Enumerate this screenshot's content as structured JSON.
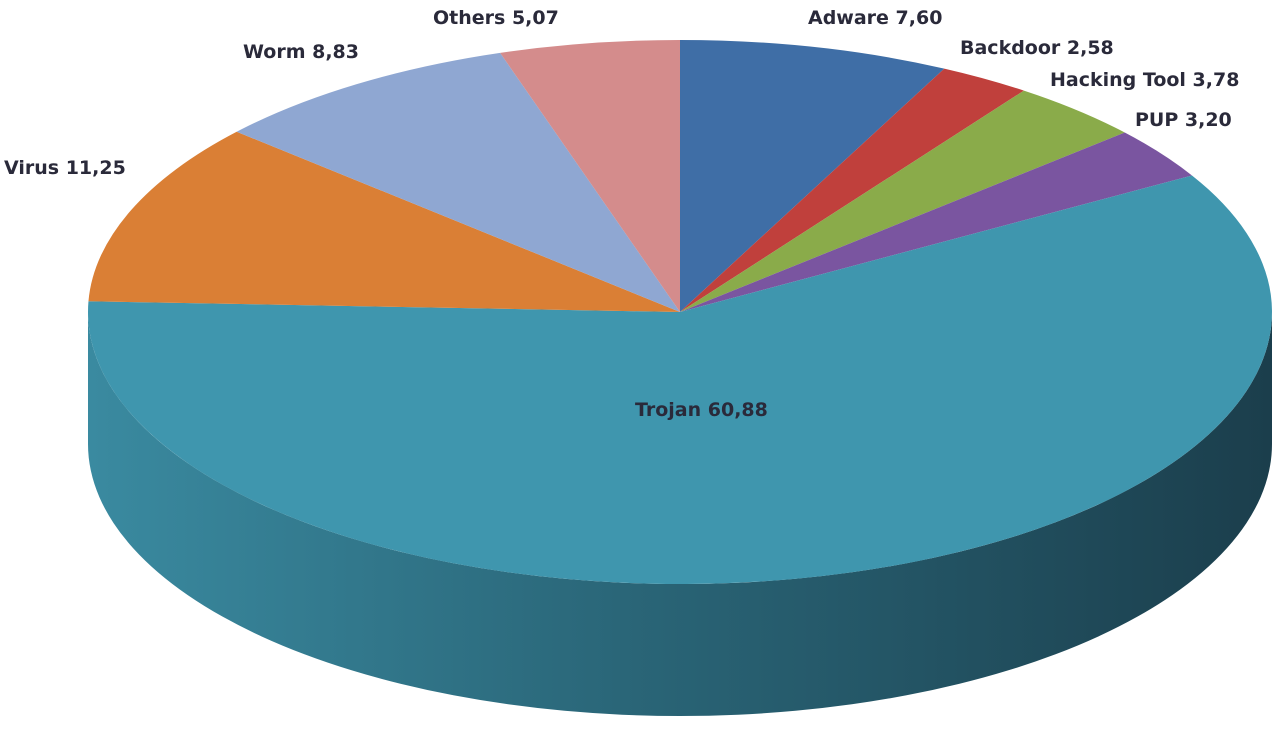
{
  "chart_data": {
    "type": "pie",
    "style": "3d",
    "title": "",
    "labels": [
      "Adware",
      "Backdoor",
      "Hacking Tool",
      "PUP",
      "Trojan",
      "Virus",
      "Worm",
      "Others"
    ],
    "values": [
      7.6,
      2.58,
      3.78,
      3.2,
      60.88,
      11.25,
      8.83,
      5.07
    ],
    "value_labels": [
      "7,60",
      "2,58",
      "3,78",
      "3,20",
      "60,88",
      "11,25",
      "8,83",
      "5,07"
    ],
    "colors": [
      "#3f6ea6",
      "#c0403c",
      "#8aab4a",
      "#7a55a0",
      "#3f96ae",
      "#da7f35",
      "#8fa7d2",
      "#d48c8c"
    ],
    "side_color": "#2d6f82",
    "start": "top",
    "direction": "clockwise",
    "legend": "none"
  }
}
